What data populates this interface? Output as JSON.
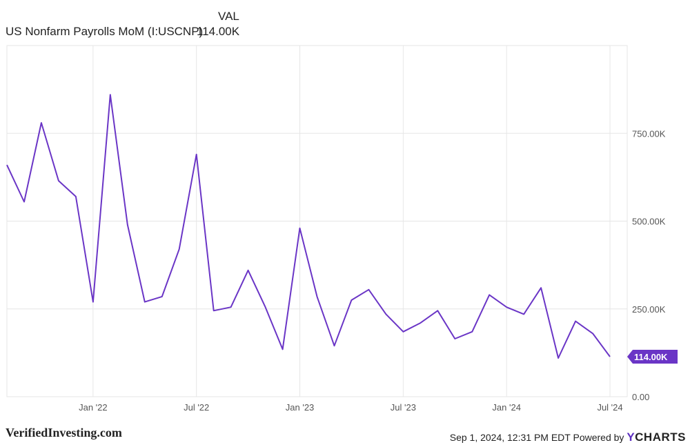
{
  "legend": {
    "column_header": "VAL",
    "series_name": "US Nonfarm Payrolls MoM (I:USCNP)",
    "series_value": "114.00K"
  },
  "colors": {
    "line": "#6a35c6",
    "badge": "#6a35c6",
    "grid": "#e6e6e6"
  },
  "footer": {
    "watermark": "VerifiedInvesting.com",
    "timestamp": "Sep 1, 2024, 12:31 PM EDT",
    "powered_by": "Powered by",
    "brand_y": "Y",
    "brand_rest": "CHARTS"
  },
  "chart_data": {
    "type": "line",
    "title": "",
    "xlabel": "",
    "ylabel": "",
    "ylim": [
      0,
      1000
    ],
    "y_ticks": [
      0,
      250,
      500,
      750
    ],
    "y_tick_labels": [
      "0.00",
      "250.00K",
      "500.00K",
      "750.00K"
    ],
    "x_range": [
      "2021-08",
      "2024-08"
    ],
    "x_ticks": [
      "2022-01",
      "2022-07",
      "2023-01",
      "2023-07",
      "2024-01",
      "2024-07"
    ],
    "x_tick_labels": [
      "Jan '22",
      "Jul '22",
      "Jan '23",
      "Jul '23",
      "Jan '24",
      "Jul '24"
    ],
    "grid": true,
    "legend_position": "top-left",
    "last_value_label": "114.00K",
    "series": [
      {
        "name": "US Nonfarm Payrolls MoM (I:USCNP)",
        "x": [
          "2021-08",
          "2021-09",
          "2021-10",
          "2021-11",
          "2021-12",
          "2022-01",
          "2022-02",
          "2022-03",
          "2022-04",
          "2022-05",
          "2022-06",
          "2022-07",
          "2022-08",
          "2022-09",
          "2022-10",
          "2022-11",
          "2022-12",
          "2023-01",
          "2023-02",
          "2023-03",
          "2023-04",
          "2023-05",
          "2023-06",
          "2023-07",
          "2023-08",
          "2023-09",
          "2023-10",
          "2023-11",
          "2023-12",
          "2024-01",
          "2024-02",
          "2024-03",
          "2024-04",
          "2024-05",
          "2024-06",
          "2024-07"
        ],
        "values": [
          660,
          555,
          780,
          615,
          570,
          270,
          860,
          490,
          270,
          285,
          420,
          690,
          245,
          255,
          360,
          255,
          135,
          480,
          285,
          145,
          275,
          305,
          235,
          185,
          210,
          245,
          165,
          185,
          290,
          255,
          235,
          310,
          110,
          215,
          180,
          114
        ]
      }
    ]
  }
}
